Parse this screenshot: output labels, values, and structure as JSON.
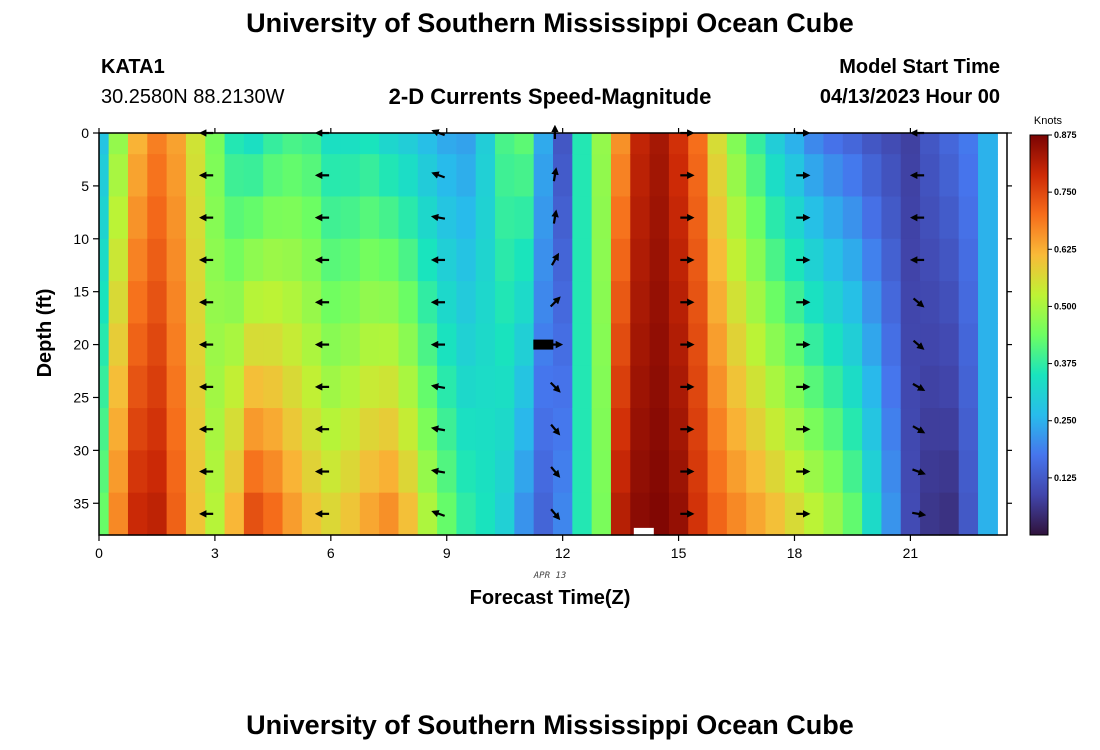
{
  "header": {
    "title": "University of Southern Mississippi Ocean Cube",
    "station_id": "KATA1",
    "station_coords": "30.2580N  88.2130W",
    "model_start_label": "Model Start Time",
    "model_start_value": "04/13/2023 Hour 00"
  },
  "footer": {
    "title": "University of Southern Mississippi Ocean Cube"
  },
  "chart_data": {
    "type": "heatmap",
    "title": "2-D Currents Speed-Magnitude",
    "xlabel": "Forecast Time(Z)",
    "ylabel": "Depth (ft)",
    "date_label": "APR 13",
    "xlim": [
      0,
      23.5
    ],
    "ylim": [
      0,
      38
    ],
    "xticks": [
      0,
      3,
      6,
      9,
      12,
      15,
      18,
      21
    ],
    "yticks": [
      0,
      5,
      10,
      15,
      20,
      25,
      30,
      35
    ],
    "colorbar": {
      "label": "Knots",
      "range": [
        0,
        0.875
      ],
      "ticks": [
        "0.875",
        "0.750",
        "0.625",
        "0.500",
        "0.375",
        "0.250",
        "0.125"
      ],
      "tick_values": [
        0.875,
        0.75,
        0.625,
        0.5,
        0.375,
        0.25,
        0.125
      ]
    },
    "hours": [
      0,
      0.5,
      1,
      1.5,
      2,
      2.5,
      3,
      3.5,
      4,
      4.5,
      5,
      5.5,
      6,
      6.5,
      7,
      7.5,
      8,
      8.5,
      9,
      9.5,
      10,
      10.5,
      11,
      11.5,
      12,
      12.5,
      13,
      13.5,
      14,
      14.5,
      15,
      15.5,
      16,
      16.5,
      17,
      17.5,
      18,
      18.5,
      19,
      19.5,
      20,
      20.5,
      21,
      21.5,
      22,
      22.5,
      23
    ],
    "depth_levels_ft": [
      0,
      4,
      8,
      12,
      16,
      20,
      24,
      28,
      32,
      36
    ],
    "speed_profiles_knots": {
      "surface": [
        0.28,
        0.48,
        0.62,
        0.68,
        0.64,
        0.55,
        0.45,
        0.36,
        0.34,
        0.38,
        0.4,
        0.39,
        0.34,
        0.34,
        0.35,
        0.32,
        0.3,
        0.27,
        0.24,
        0.23,
        0.3,
        0.4,
        0.42,
        0.24,
        0.12,
        0.36,
        0.48,
        0.66,
        0.8,
        0.83,
        0.78,
        0.7,
        0.56,
        0.46,
        0.38,
        0.3,
        0.25,
        0.2,
        0.17,
        0.15,
        0.12,
        0.1,
        0.08,
        0.12,
        0.15,
        0.18,
        0.25
      ],
      "bottom": [
        0.44,
        0.68,
        0.8,
        0.81,
        0.72,
        0.6,
        0.52,
        0.63,
        0.76,
        0.72,
        0.66,
        0.61,
        0.58,
        0.61,
        0.65,
        0.68,
        0.62,
        0.52,
        0.44,
        0.38,
        0.35,
        0.3,
        0.2,
        0.14,
        0.2,
        0.36,
        0.45,
        0.82,
        0.86,
        0.87,
        0.85,
        0.78,
        0.72,
        0.68,
        0.65,
        0.62,
        0.58,
        0.54,
        0.5,
        0.44,
        0.34,
        0.22,
        0.1,
        0.06,
        0.05,
        0.12,
        0.25
      ]
    },
    "vector_hours": [
      2.8,
      5.8,
      8.8,
      11.8,
      15.2,
      18.2,
      21.2
    ],
    "vector_depths_ft": [
      0,
      4,
      8,
      12,
      16,
      20,
      24,
      28,
      32,
      36
    ],
    "vector_directions_deg": [
      [
        180,
        180,
        180,
        180,
        180,
        180,
        180,
        180,
        180,
        180
      ],
      [
        180,
        180,
        180,
        180,
        180,
        180,
        180,
        180,
        180,
        180
      ],
      [
        160,
        160,
        170,
        180,
        180,
        180,
        170,
        170,
        170,
        160
      ],
      [
        90,
        80,
        80,
        60,
        45,
        0,
        -45,
        -50,
        -50,
        -50
      ],
      [
        0,
        0,
        0,
        0,
        0,
        0,
        0,
        0,
        0,
        0
      ],
      [
        0,
        0,
        0,
        0,
        0,
        0,
        0,
        0,
        0,
        0
      ],
      [
        180,
        180,
        180,
        180,
        -40,
        -40,
        -30,
        -30,
        -20,
        -10
      ]
    ],
    "markers": [
      {
        "hour": 11.5,
        "depth": 20,
        "color": "#000000"
      },
      {
        "hour": 14.1,
        "depth": 37.8,
        "color": "#ffffff"
      }
    ]
  }
}
